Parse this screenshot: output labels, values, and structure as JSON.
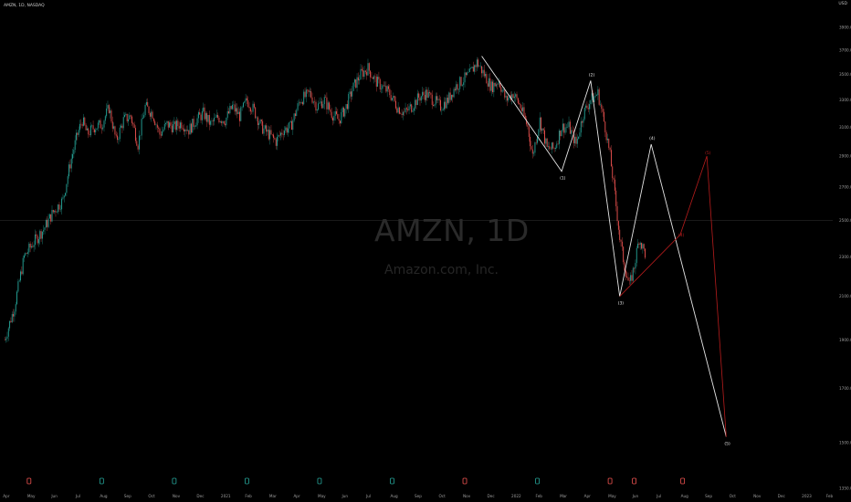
{
  "header": {
    "title": "AMZN, 1D, NASDAQ",
    "currency": "USD"
  },
  "watermark": {
    "symbol": "AMZN, 1D",
    "company": "Amazon.com, Inc."
  },
  "colors": {
    "background": "#000000",
    "up": "#26a69a",
    "down": "#ef5350",
    "wave_primary": "#e6e6e6",
    "wave_alt": "#b71c1c",
    "event_marker_green": "#26a69a",
    "event_marker_red": "#ef5350"
  },
  "chart_data": {
    "type": "candlestick",
    "interval": "1D",
    "ylim": [
      1350,
      4050
    ],
    "y_scale": "log",
    "y_ticks": [
      "3900.00",
      "3700.00",
      "3500.00",
      "3300.00",
      "3100.00",
      "2900.00",
      "2700.00",
      "2500.00",
      "2300.00",
      "2100.00",
      "1900.00",
      "1700.00",
      "1500.00",
      "1350.00"
    ],
    "x_ticks": [
      "Apr",
      "May",
      "Jun",
      "Jul",
      "Aug",
      "Sep",
      "Oct",
      "Nov",
      "Dec",
      "2021",
      "Feb",
      "Mar",
      "Apr",
      "May",
      "Jun",
      "Jul",
      "Aug",
      "Sep",
      "Oct",
      "Nov",
      "Dec",
      "2022",
      "Feb",
      "Mar",
      "Apr",
      "May",
      "Jun",
      "Jul",
      "Aug",
      "Sep",
      "Oct",
      "Nov",
      "Dec",
      "2023",
      "Feb"
    ],
    "x_index": [
      0,
      1.0,
      2.0,
      3.0,
      4.0,
      5.0,
      6.0,
      7.0,
      8.0,
      9.0,
      10.0,
      11.0,
      12.0,
      13.0,
      14.0,
      15.0,
      16.0,
      17.0,
      18.0,
      19.0,
      20.0,
      21.0,
      22.0,
      23.0,
      24.0,
      25.0,
      26.0,
      27.0,
      28.0,
      29.0,
      30.0,
      31.0,
      32.0,
      33.0,
      34.0
    ],
    "price_path": [
      [
        0.0,
        1900
      ],
      [
        0.4,
        2050
      ],
      [
        0.8,
        2300
      ],
      [
        1.2,
        2380
      ],
      [
        1.6,
        2450
      ],
      [
        2.0,
        2550
      ],
      [
        2.4,
        2620
      ],
      [
        2.7,
        2850
      ],
      [
        3.0,
        3050
      ],
      [
        3.2,
        3150
      ],
      [
        3.4,
        3050
      ],
      [
        3.7,
        3100
      ],
      [
        4.0,
        3120
      ],
      [
        4.3,
        3240
      ],
      [
        4.6,
        3000
      ],
      [
        4.9,
        3150
      ],
      [
        5.2,
        3180
      ],
      [
        5.5,
        2980
      ],
      [
        5.8,
        3250
      ],
      [
        6.1,
        3200
      ],
      [
        6.4,
        3050
      ],
      [
        6.7,
        3120
      ],
      [
        7.0,
        3100
      ],
      [
        7.3,
        3130
      ],
      [
        7.6,
        3080
      ],
      [
        7.9,
        3150
      ],
      [
        8.2,
        3200
      ],
      [
        8.5,
        3120
      ],
      [
        8.8,
        3170
      ],
      [
        9.1,
        3150
      ],
      [
        9.4,
        3250
      ],
      [
        9.7,
        3180
      ],
      [
        10.0,
        3300
      ],
      [
        10.3,
        3220
      ],
      [
        10.6,
        3100
      ],
      [
        10.9,
        3050
      ],
      [
        11.2,
        3000
      ],
      [
        11.5,
        3080
      ],
      [
        11.8,
        3100
      ],
      [
        12.2,
        3300
      ],
      [
        12.6,
        3350
      ],
      [
        12.9,
        3250
      ],
      [
        13.2,
        3300
      ],
      [
        13.5,
        3200
      ],
      [
        13.8,
        3150
      ],
      [
        14.1,
        3250
      ],
      [
        14.4,
        3400
      ],
      [
        14.7,
        3500
      ],
      [
        15.0,
        3550
      ],
      [
        15.3,
        3450
      ],
      [
        15.6,
        3400
      ],
      [
        15.9,
        3350
      ],
      [
        16.2,
        3250
      ],
      [
        16.5,
        3200
      ],
      [
        16.8,
        3250
      ],
      [
        17.1,
        3320
      ],
      [
        17.4,
        3350
      ],
      [
        17.7,
        3300
      ],
      [
        18.0,
        3250
      ],
      [
        18.3,
        3300
      ],
      [
        18.6,
        3400
      ],
      [
        18.9,
        3450
      ],
      [
        19.2,
        3500
      ],
      [
        19.5,
        3600
      ],
      [
        19.8,
        3500
      ],
      [
        20.1,
        3400
      ],
      [
        20.4,
        3450
      ],
      [
        20.7,
        3300
      ],
      [
        21.0,
        3350
      ],
      [
        21.3,
        3250
      ],
      [
        21.6,
        3100
      ],
      [
        21.8,
        2900
      ],
      [
        22.1,
        3150
      ],
      [
        22.4,
        2950
      ],
      [
        22.7,
        2950
      ],
      [
        23.0,
        3100
      ],
      [
        23.3,
        3100
      ],
      [
        23.6,
        2980
      ],
      [
        23.9,
        3200
      ],
      [
        24.2,
        3300
      ],
      [
        24.5,
        3350
      ],
      [
        24.8,
        3100
      ],
      [
        25.0,
        2900
      ],
      [
        25.2,
        2650
      ],
      [
        25.4,
        2400
      ],
      [
        25.6,
        2250
      ],
      [
        25.8,
        2150
      ],
      [
        26.0,
        2250
      ],
      [
        26.2,
        2400
      ],
      [
        26.5,
        2300
      ]
    ],
    "waves": {
      "primary": {
        "labels": [
          "(1)",
          "(2)",
          "(3)",
          "(4)",
          "(5)"
        ],
        "points": [
          [
            19.7,
            3650
          ],
          [
            23.0,
            2800
          ],
          [
            24.2,
            3450
          ],
          [
            25.4,
            2100
          ],
          [
            26.7,
            2980
          ],
          [
            29.8,
            1520
          ]
        ],
        "line_points": [
          [
            19.7,
            3650
          ],
          [
            23.0,
            2800
          ],
          [
            24.2,
            3450
          ],
          [
            25.4,
            2100
          ],
          [
            26.7,
            2980
          ],
          [
            29.8,
            1520
          ]
        ]
      },
      "alternate": {
        "labels": [
          "(4)",
          "(5)"
        ],
        "points": [
          [
            27.9,
            2420
          ],
          [
            29.0,
            2900
          ]
        ]
      }
    },
    "event_markers": [
      {
        "x": 1.0,
        "color": "#ef5350"
      },
      {
        "x": 4.0,
        "color": "#26a69a"
      },
      {
        "x": 7.0,
        "color": "#26a69a"
      },
      {
        "x": 10.0,
        "color": "#26a69a"
      },
      {
        "x": 13.0,
        "color": "#26a69a"
      },
      {
        "x": 16.0,
        "color": "#26a69a"
      },
      {
        "x": 19.0,
        "color": "#ef5350"
      },
      {
        "x": 22.0,
        "color": "#26a69a"
      },
      {
        "x": 25.0,
        "color": "#ef5350"
      },
      {
        "x": 26.0,
        "color": "#ef5350"
      },
      {
        "x": 28.0,
        "color": "#ef5350"
      }
    ],
    "crosshair_price": 2500
  }
}
